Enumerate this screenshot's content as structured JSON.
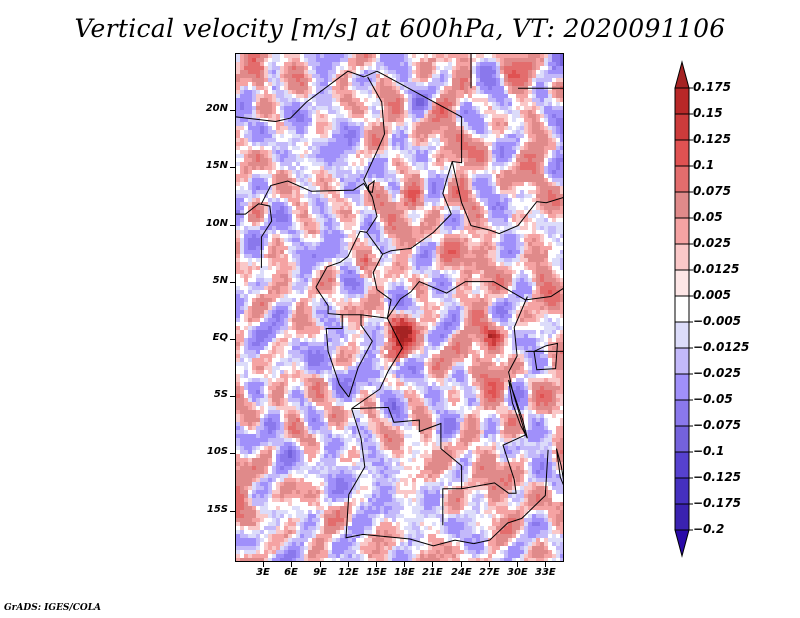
{
  "title": "Vertical velocity [m/s] at 600hPa, VT: 2020091106",
  "footer": "GrADS: IGES/COLA",
  "map": {
    "projection": "latlon",
    "lon_range": [
      0,
      35
    ],
    "lat_range": [
      -19.5,
      25
    ],
    "variable": "Vertical velocity",
    "units": "m/s",
    "level": "600hPa",
    "valid_time": "2020091106",
    "y_ticks": [
      {
        "lat": 20,
        "label": "20N"
      },
      {
        "lat": 15,
        "label": "15N"
      },
      {
        "lat": 10,
        "label": "10N"
      },
      {
        "lat": 5,
        "label": "5N"
      },
      {
        "lat": 0,
        "label": "EQ"
      },
      {
        "lat": -5,
        "label": "5S"
      },
      {
        "lat": -10,
        "label": "10S"
      },
      {
        "lat": -15,
        "label": "15S"
      }
    ],
    "x_ticks": [
      {
        "lon": 3,
        "label": "3E"
      },
      {
        "lon": 6,
        "label": "6E"
      },
      {
        "lon": 9,
        "label": "9E"
      },
      {
        "lon": 12,
        "label": "12E"
      },
      {
        "lon": 15,
        "label": "15E"
      },
      {
        "lon": 18,
        "label": "18E"
      },
      {
        "lon": 21,
        "label": "21E"
      },
      {
        "lon": 24,
        "label": "24E"
      },
      {
        "lon": 27,
        "label": "27E"
      },
      {
        "lon": 30,
        "label": "30E"
      },
      {
        "lon": 33,
        "label": "33E"
      }
    ],
    "hotspots": [
      {
        "lon": 18.5,
        "lat": 12.5,
        "value": 0.15
      },
      {
        "lon": 17.5,
        "lat": 1.0,
        "value": 0.15
      },
      {
        "lon": 16.8,
        "lat": -1.0,
        "value": 0.125
      },
      {
        "lon": 27.0,
        "lat": 0.5,
        "value": 0.125
      },
      {
        "lon": 13.5,
        "lat": 6.5,
        "value": 0.1
      },
      {
        "lon": 17.0,
        "lat": -2.2,
        "value": -0.1
      },
      {
        "lon": 2.5,
        "lat": 23.0,
        "value": 0.1
      }
    ]
  },
  "colorbar": {
    "levels": [
      {
        "label": "0.175",
        "color": "#a52323"
      },
      {
        "label": "0.15",
        "color": "#b82828"
      },
      {
        "label": "0.125",
        "color": "#cc3b3b"
      },
      {
        "label": "0.1",
        "color": "#e05252"
      },
      {
        "label": "0.075",
        "color": "#e36d6d"
      },
      {
        "label": "0.05",
        "color": "#e08a8a"
      },
      {
        "label": "0.025",
        "color": "#f5a3a3"
      },
      {
        "label": "0.0125",
        "color": "#fac8c8"
      },
      {
        "label": "0.005",
        "color": "#fde6e6"
      },
      {
        "label": "-0.005",
        "color": "#ffffff"
      },
      {
        "label": "-0.0125",
        "color": "#dcdcfa"
      },
      {
        "label": "-0.025",
        "color": "#c3b9fa"
      },
      {
        "label": "-0.05",
        "color": "#a090fa"
      },
      {
        "label": "-0.075",
        "color": "#8a78ec"
      },
      {
        "label": "-0.1",
        "color": "#7462dc"
      },
      {
        "label": "-0.125",
        "color": "#5641cf"
      },
      {
        "label": "-0.175",
        "color": "#4530c0"
      },
      {
        "label": "-0.2",
        "color": "#3a22b0"
      }
    ],
    "top_arrow_color": "#a52323",
    "bottom_arrow_color": "#2a0aa8",
    "band_above_first": "#a52323"
  }
}
